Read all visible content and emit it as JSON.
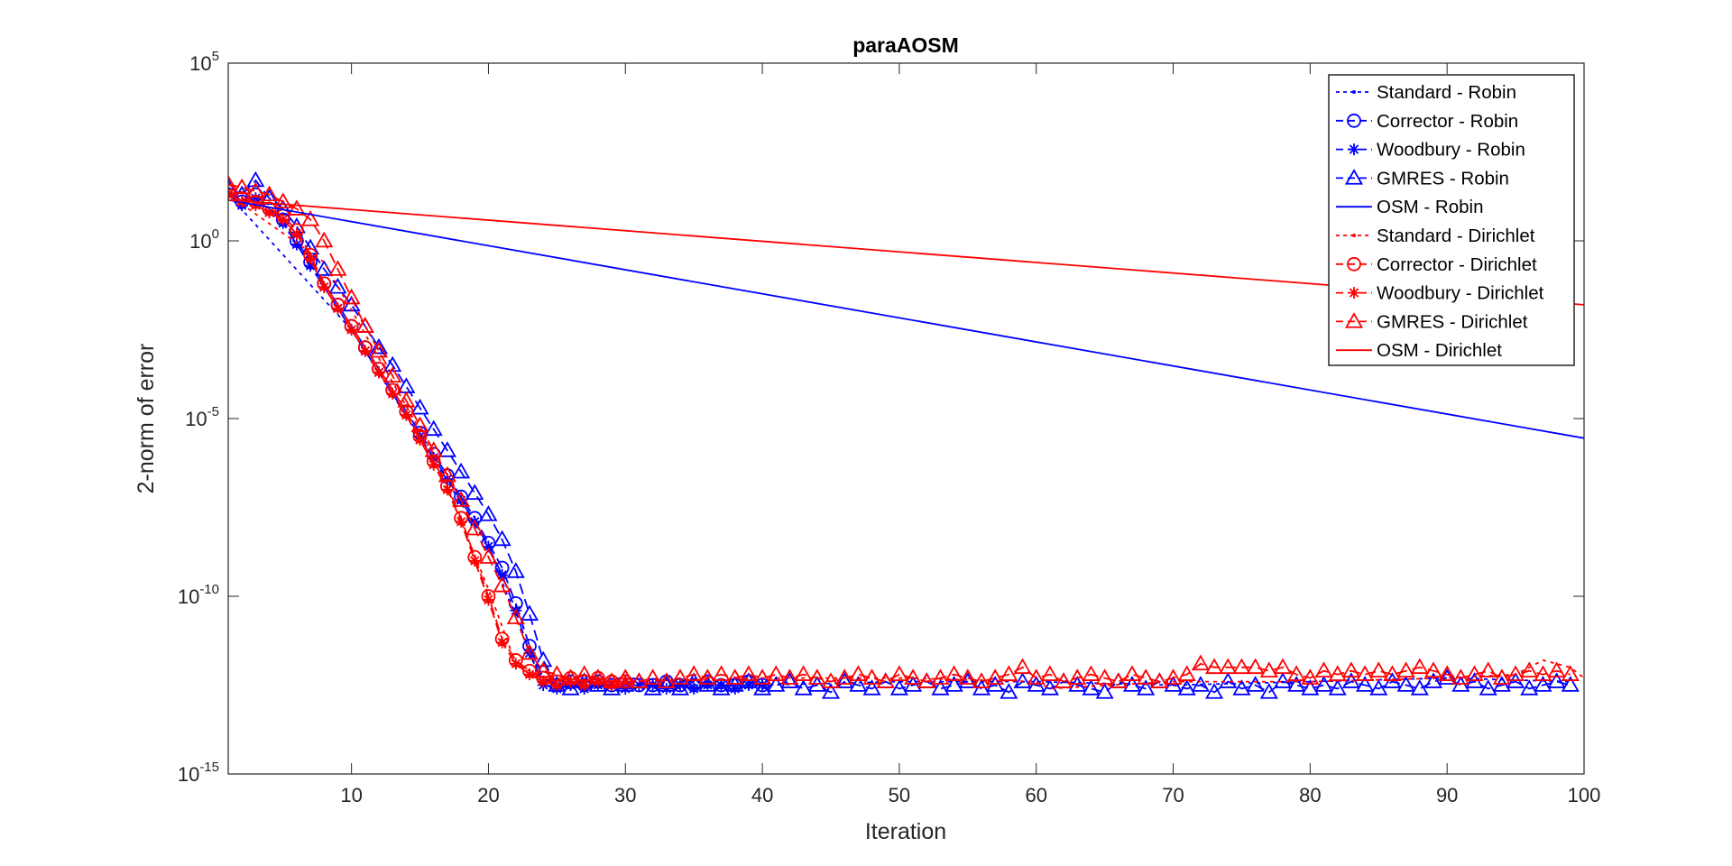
{
  "chart_data": {
    "type": "line",
    "title": "paraAOSM",
    "xlabel": "Iteration",
    "ylabel": "2-norm of error",
    "xlim": [
      1,
      100
    ],
    "ylim_exponent": [
      -15,
      5
    ],
    "yscale": "log",
    "grid": false,
    "legend_position": "top-right",
    "x_ticks": [
      10,
      20,
      30,
      40,
      50,
      60,
      70,
      80,
      90,
      100
    ],
    "y_ticks": [
      {
        "base": "10",
        "exp": "5"
      },
      {
        "base": "10",
        "exp": "0"
      },
      {
        "base": "10",
        "exp": "-5"
      },
      {
        "base": "10",
        "exp": "-10"
      },
      {
        "base": "10",
        "exp": "-15"
      }
    ],
    "colors": {
      "robin": "#0000ff",
      "dirichlet": "#ff0000"
    },
    "legend": [
      {
        "label": "Standard - Robin",
        "color": "#0000ff",
        "dash": "dotted",
        "marker": "point"
      },
      {
        "label": "Corrector - Robin",
        "color": "#0000ff",
        "dash": "dashed",
        "marker": "circle"
      },
      {
        "label": "Woodbury - Robin",
        "color": "#0000ff",
        "dash": "dashed",
        "marker": "star"
      },
      {
        "label": "GMRES - Robin",
        "color": "#0000ff",
        "dash": "dashed",
        "marker": "triangle"
      },
      {
        "label": "OSM - Robin",
        "color": "#0000ff",
        "dash": "solid",
        "marker": "none"
      },
      {
        "label": "Standard - Dirichlet",
        "color": "#ff0000",
        "dash": "dotted",
        "marker": "point"
      },
      {
        "label": "Corrector - Dirichlet",
        "color": "#ff0000",
        "dash": "dashed",
        "marker": "circle"
      },
      {
        "label": "Woodbury - Dirichlet",
        "color": "#ff0000",
        "dash": "dashed",
        "marker": "star"
      },
      {
        "label": "GMRES - Dirichlet",
        "color": "#ff0000",
        "dash": "dashed",
        "marker": "triangle"
      },
      {
        "label": "OSM - Dirichlet",
        "color": "#ff0000",
        "dash": "solid",
        "marker": "none"
      }
    ],
    "series": [
      {
        "label_ref": 2,
        "color": "#0000ff",
        "dash": "dashed",
        "marker": "star",
        "x": [
          1,
          2,
          3,
          4,
          5,
          6,
          7,
          8,
          9,
          10,
          11,
          12,
          13,
          14,
          15,
          16,
          17,
          18,
          19,
          20,
          21,
          22,
          23,
          24,
          25,
          26,
          27,
          28,
          29,
          30,
          31,
          32,
          33,
          34,
          35,
          36,
          37,
          38,
          39,
          40
        ],
        "log10y": [
          1.3,
          1.0,
          1.2,
          0.8,
          0.5,
          -0.1,
          -0.7,
          -1.3,
          -1.9,
          -2.5,
          -3.1,
          -3.7,
          -4.3,
          -4.9,
          -5.5,
          -6.1,
          -6.7,
          -7.3,
          -7.9,
          -8.6,
          -9.4,
          -10.4,
          -11.6,
          -12.5,
          -12.6,
          -12.5,
          -12.6,
          -12.5,
          -12.5,
          -12.6,
          -12.5,
          -12.5,
          -12.6,
          -12.5,
          -12.6,
          -12.5,
          -12.5,
          -12.6,
          -12.5,
          -12.5
        ]
      },
      {
        "label_ref": 1,
        "color": "#0000ff",
        "dash": "dashed",
        "marker": "circle",
        "x": [
          1,
          2,
          3,
          4,
          5,
          6,
          7,
          8,
          9,
          10,
          11,
          12,
          13,
          14,
          15,
          16,
          17,
          18,
          19,
          20,
          21,
          22,
          23,
          24,
          25,
          26,
          27,
          28,
          29,
          30,
          31,
          32,
          33,
          34,
          35,
          36,
          37,
          38,
          39,
          40
        ],
        "log10y": [
          1.4,
          1.1,
          1.3,
          0.9,
          0.6,
          0.0,
          -0.6,
          -1.2,
          -1.8,
          -2.4,
          -3.0,
          -3.6,
          -4.2,
          -4.8,
          -5.4,
          -6.0,
          -6.6,
          -7.2,
          -7.8,
          -8.5,
          -9.2,
          -10.2,
          -11.4,
          -12.3,
          -12.5,
          -12.4,
          -12.5,
          -12.4,
          -12.5,
          -12.4,
          -12.5,
          -12.5,
          -12.4,
          -12.5,
          -12.5,
          -12.4,
          -12.5,
          -12.5,
          -12.4,
          -12.5
        ]
      },
      {
        "label_ref": 3,
        "color": "#0000ff",
        "dash": "dashed",
        "marker": "triangle",
        "x": [
          1,
          2,
          3,
          4,
          5,
          6,
          7,
          8,
          9,
          10,
          11,
          12,
          13,
          14,
          15,
          16,
          17,
          18,
          19,
          20,
          21,
          22,
          23,
          24,
          25,
          26,
          27,
          28,
          29,
          30,
          31,
          32,
          33,
          34,
          35,
          36,
          37,
          38,
          39,
          40,
          41,
          42,
          43,
          44,
          45,
          46,
          47,
          48,
          49,
          50,
          51,
          52,
          53,
          54,
          55,
          56,
          57,
          58,
          59,
          60,
          61,
          62,
          63,
          64,
          65,
          66,
          67,
          68,
          69,
          70,
          71,
          72,
          73,
          74,
          75,
          76,
          77,
          78,
          79,
          80,
          81,
          82,
          83,
          84,
          85,
          86,
          87,
          88,
          89,
          90,
          91,
          92,
          93,
          94,
          95,
          96,
          97,
          98,
          99
        ],
        "log10y": [
          1.5,
          1.3,
          1.7,
          1.2,
          0.9,
          0.4,
          -0.2,
          -0.8,
          -1.3,
          -1.8,
          -2.4,
          -3.0,
          -3.5,
          -4.1,
          -4.7,
          -5.3,
          -5.9,
          -6.5,
          -7.1,
          -7.7,
          -8.4,
          -9.3,
          -10.5,
          -11.8,
          -12.5,
          -12.6,
          -12.4,
          -12.5,
          -12.6,
          -12.5,
          -12.4,
          -12.6,
          -12.5,
          -12.6,
          -12.4,
          -12.5,
          -12.6,
          -12.5,
          -12.4,
          -12.6,
          -12.5,
          -12.4,
          -12.6,
          -12.5,
          -12.7,
          -12.4,
          -12.5,
          -12.6,
          -12.4,
          -12.6,
          -12.5,
          -12.4,
          -12.6,
          -12.5,
          -12.4,
          -12.6,
          -12.5,
          -12.7,
          -12.4,
          -12.5,
          -12.6,
          -12.4,
          -12.5,
          -12.6,
          -12.7,
          -12.4,
          -12.5,
          -12.6,
          -12.4,
          -12.5,
          -12.6,
          -12.5,
          -12.7,
          -12.4,
          -12.6,
          -12.5,
          -12.7,
          -12.4,
          -12.5,
          -12.6,
          -12.5,
          -12.6,
          -12.4,
          -12.5,
          -12.6,
          -12.4,
          -12.5,
          -12.6,
          -12.4,
          -12.3,
          -12.5,
          -12.4,
          -12.6,
          -12.5,
          -12.4,
          -12.6,
          -12.5,
          -12.4,
          -12.5
        ]
      },
      {
        "label_ref": 0,
        "color": "#0000ff",
        "dash": "dotted",
        "marker": "point",
        "x": [
          1,
          10,
          20,
          23,
          24,
          30,
          40,
          50,
          60,
          70,
          80,
          90,
          99
        ],
        "log10y": [
          1.3,
          -2.5,
          -8.6,
          -11.6,
          -12.4,
          -12.3,
          -12.5,
          -12.4,
          -12.4,
          -12.5,
          -12.4,
          -12.3,
          -12.4
        ]
      },
      {
        "label_ref": 6,
        "color": "#ff0000",
        "dash": "dashed",
        "marker": "circle",
        "x": [
          1,
          2,
          3,
          4,
          5,
          6,
          7,
          8,
          9,
          10,
          11,
          12,
          13,
          14,
          15,
          16,
          17,
          18,
          19,
          20,
          21,
          22,
          23,
          24,
          25,
          26,
          27,
          28,
          29,
          30
        ],
        "log10y": [
          1.4,
          1.2,
          1.1,
          0.9,
          0.7,
          0.3,
          -0.4,
          -1.2,
          -1.8,
          -2.4,
          -3.0,
          -3.6,
          -4.2,
          -4.8,
          -5.5,
          -6.2,
          -6.9,
          -7.8,
          -8.9,
          -10.0,
          -11.2,
          -11.8,
          -12.1,
          -12.3,
          -12.4,
          -12.3,
          -12.4,
          -12.3,
          -12.4,
          -12.4
        ]
      },
      {
        "label_ref": 7,
        "color": "#ff0000",
        "dash": "dashed",
        "marker": "star",
        "x": [
          1,
          2,
          3,
          4,
          5,
          6,
          7,
          8,
          9,
          10,
          11,
          12,
          13,
          14,
          15,
          16,
          17,
          18,
          19,
          20,
          21,
          22,
          23,
          24,
          25,
          26,
          27,
          28,
          29,
          30
        ],
        "log10y": [
          1.3,
          1.1,
          1.0,
          0.8,
          0.6,
          0.2,
          -0.5,
          -1.3,
          -1.9,
          -2.5,
          -3.1,
          -3.7,
          -4.3,
          -4.9,
          -5.6,
          -6.3,
          -7.0,
          -7.9,
          -9.0,
          -10.1,
          -11.3,
          -11.9,
          -12.2,
          -12.4,
          -12.5,
          -12.4,
          -12.5,
          -12.4,
          -12.5,
          -12.4
        ]
      },
      {
        "label_ref": 8,
        "color": "#ff0000",
        "dash": "dashed",
        "marker": "triangle",
        "x": [
          1,
          2,
          3,
          4,
          5,
          6,
          7,
          8,
          9,
          10,
          11,
          12,
          13,
          14,
          15,
          16,
          17,
          18,
          19,
          20,
          21,
          22,
          23,
          24,
          25,
          26,
          27,
          28,
          29,
          30,
          31,
          32,
          33,
          34,
          35,
          36,
          37,
          38,
          39,
          40,
          41,
          42,
          43,
          44,
          45,
          46,
          47,
          48,
          49,
          50,
          51,
          52,
          53,
          54,
          55,
          56,
          57,
          58,
          59,
          60,
          61,
          62,
          63,
          64,
          65,
          66,
          67,
          68,
          69,
          70,
          71,
          72,
          73,
          74,
          75,
          76,
          77,
          78,
          79,
          80,
          81,
          82,
          83,
          84,
          85,
          86,
          87,
          88,
          89,
          90,
          91,
          92,
          93,
          94,
          95,
          96,
          97,
          98,
          99
        ],
        "log10y": [
          1.6,
          1.5,
          1.4,
          1.3,
          1.1,
          0.9,
          0.6,
          0.0,
          -0.8,
          -1.6,
          -2.4,
          -3.1,
          -3.8,
          -4.5,
          -5.2,
          -5.9,
          -6.6,
          -7.3,
          -8.1,
          -8.9,
          -9.7,
          -10.6,
          -11.6,
          -12.1,
          -12.2,
          -12.3,
          -12.2,
          -12.3,
          -12.4,
          -12.3,
          -12.4,
          -12.3,
          -12.4,
          -12.3,
          -12.2,
          -12.3,
          -12.2,
          -12.3,
          -12.2,
          -12.3,
          -12.2,
          -12.3,
          -12.2,
          -12.3,
          -12.4,
          -12.3,
          -12.2,
          -12.3,
          -12.4,
          -12.2,
          -12.3,
          -12.4,
          -12.3,
          -12.2,
          -12.3,
          -12.4,
          -12.3,
          -12.2,
          -12.0,
          -12.3,
          -12.2,
          -12.4,
          -12.3,
          -12.2,
          -12.3,
          -12.4,
          -12.2,
          -12.3,
          -12.4,
          -12.3,
          -12.2,
          -11.9,
          -12.0,
          -12.0,
          -12.0,
          -12.0,
          -12.1,
          -12.0,
          -12.2,
          -12.3,
          -12.1,
          -12.2,
          -12.1,
          -12.2,
          -12.1,
          -12.2,
          -12.1,
          -12.0,
          -12.1,
          -12.2,
          -12.3,
          -12.2,
          -12.1,
          -12.3,
          -12.2,
          -12.1,
          -12.2,
          -12.1,
          -12.2
        ]
      },
      {
        "label_ref": 5,
        "color": "#ff0000",
        "dash": "dotted",
        "marker": "point",
        "x": [
          1,
          8,
          16,
          20,
          22,
          24,
          30,
          40,
          50,
          60,
          61,
          70,
          80,
          90,
          95,
          97,
          99,
          100
        ],
        "log10y": [
          1.3,
          -0.6,
          -6.0,
          -9.8,
          -11.9,
          -12.3,
          -12.4,
          -12.3,
          -12.3,
          -12.4,
          -12.6,
          -12.4,
          -12.4,
          -12.3,
          -12.2,
          -11.8,
          -12.0,
          -12.3
        ]
      },
      {
        "label_ref": 4,
        "color": "#0000ff",
        "dash": "solid",
        "marker": "none",
        "x": [
          1,
          100
        ],
        "log10y": [
          1.15,
          -5.55
        ]
      },
      {
        "label_ref": 9,
        "color": "#ff0000",
        "dash": "solid",
        "marker": "none",
        "x": [
          1,
          100
        ],
        "log10y": [
          1.15,
          -1.8
        ]
      }
    ]
  }
}
